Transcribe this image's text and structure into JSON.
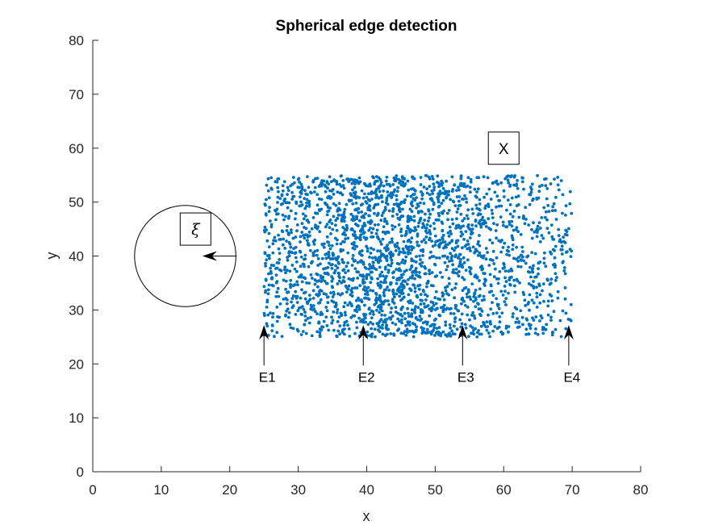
{
  "chart_data": {
    "type": "scatter",
    "title": "Spherical edge detection",
    "xlabel": "x",
    "ylabel": "y",
    "xlim": [
      0,
      80
    ],
    "ylim": [
      0,
      80
    ],
    "xticks": [
      0,
      10,
      20,
      30,
      40,
      50,
      60,
      70,
      80
    ],
    "yticks": [
      0,
      10,
      20,
      30,
      40,
      50,
      60,
      70,
      80
    ],
    "grid": false,
    "marker_color": "#0072BD",
    "scatter_region": {
      "x_range": [
        25,
        70
      ],
      "y_range": [
        25,
        55
      ],
      "approx_point_count": 2500,
      "description": "uniform random points, densest near x≈40–50, sparser toward x≈55–70"
    },
    "circle": {
      "center": [
        13.5,
        40
      ],
      "radius": 7.4
    },
    "radius_arrow": {
      "from": [
        21,
        40
      ],
      "to": [
        16,
        40
      ]
    },
    "annotations": [
      {
        "text": "E1",
        "x": 25,
        "arrow_tip_y": 26,
        "arrow_tail_y": 20
      },
      {
        "text": "E2",
        "x": 39.5,
        "arrow_tip_y": 26,
        "arrow_tail_y": 20
      },
      {
        "text": "E3",
        "x": 54,
        "arrow_tip_y": 26,
        "arrow_tail_y": 20
      },
      {
        "text": "E4",
        "x": 69.5,
        "arrow_tip_y": 26,
        "arrow_tail_y": 20
      }
    ],
    "boxed_labels": [
      {
        "text": "X",
        "x": 60,
        "y": 60
      },
      {
        "text": "ξ",
        "x": 15,
        "y": 45
      }
    ]
  }
}
